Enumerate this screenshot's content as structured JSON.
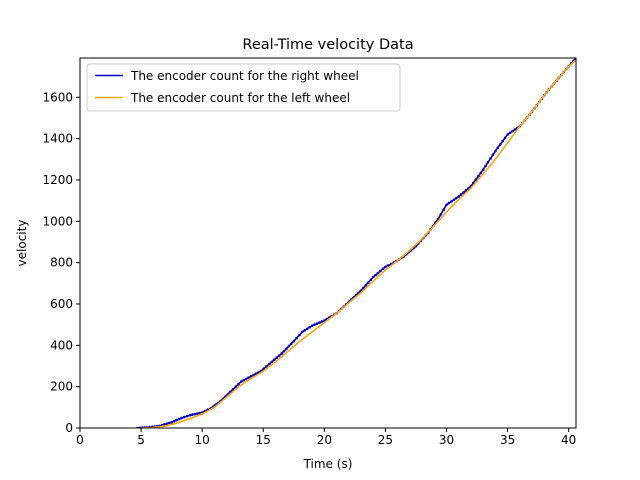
{
  "chart_data": {
    "type": "line",
    "title": "Real-Time velocity Data",
    "xlabel": "Time (s)",
    "ylabel": "velocity",
    "xlim": [
      0,
      40.6
    ],
    "ylim": [
      0,
      1790
    ],
    "xticks": [
      0,
      5,
      10,
      15,
      20,
      25,
      30,
      35,
      40
    ],
    "yticks": [
      0,
      200,
      400,
      600,
      800,
      1000,
      1200,
      1400,
      1600
    ],
    "grid": false,
    "legend_position": "upper-left",
    "series": [
      {
        "name": "The encoder count for the right wheel",
        "color": "#0000cc",
        "marker": "dots",
        "x": [
          4.7,
          5.5,
          6.5,
          7.5,
          8.3,
          9.0,
          10.0,
          10.7,
          11.5,
          12.3,
          13.2,
          14.0,
          14.8,
          15.5,
          16.5,
          17.5,
          18.2,
          19.0,
          20.0,
          21.0,
          22.0,
          23.0,
          24.0,
          25.0,
          25.7,
          26.5,
          27.5,
          28.5,
          29.3,
          30.0,
          31.0,
          32.0,
          33.0,
          34.0,
          35.0,
          36.0,
          37.0,
          38.0,
          39.0,
          40.0,
          40.6
        ],
        "y": [
          0,
          3,
          10,
          28,
          48,
          62,
          75,
          95,
          130,
          175,
          225,
          250,
          275,
          310,
          360,
          420,
          465,
          495,
          520,
          555,
          610,
          665,
          730,
          780,
          800,
          830,
          880,
          945,
          1010,
          1080,
          1120,
          1170,
          1250,
          1340,
          1420,
          1460,
          1530,
          1610,
          1680,
          1750,
          1790
        ]
      },
      {
        "name": "The encoder count for the left wheel",
        "color": "#ffa500",
        "marker": "none",
        "x": [
          5.0,
          6.0,
          7.0,
          8.0,
          9.0,
          10.0,
          11.0,
          12.0,
          13.0,
          14.0,
          15.0,
          16.0,
          17.0,
          18.0,
          19.0,
          20.0,
          21.0,
          22.0,
          23.0,
          24.0,
          25.0,
          26.0,
          27.0,
          28.0,
          29.0,
          30.0,
          31.0,
          32.0,
          33.0,
          34.0,
          35.0,
          36.0,
          37.0,
          38.0,
          39.0,
          40.0,
          40.6
        ],
        "y": [
          0,
          3,
          10,
          25,
          45,
          68,
          100,
          150,
          200,
          240,
          275,
          320,
          370,
          420,
          465,
          510,
          555,
          605,
          655,
          710,
          765,
          810,
          860,
          915,
          980,
          1045,
          1105,
          1160,
          1230,
          1300,
          1380,
          1460,
          1530,
          1610,
          1680,
          1750,
          1780
        ]
      }
    ]
  }
}
